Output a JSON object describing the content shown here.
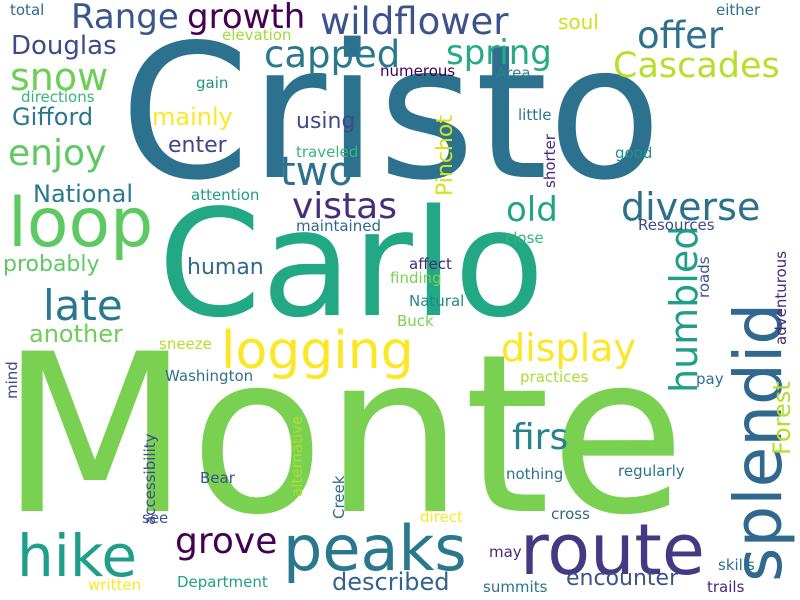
{
  "words": [
    {
      "text": "Monte",
      "color": "#7ad151"
    },
    {
      "text": "Cristo",
      "color": "#2c728e"
    },
    {
      "text": "Carlo",
      "color": "#22a884"
    },
    {
      "text": "route",
      "color": "#443983"
    },
    {
      "text": "peaks",
      "color": "#2a788e"
    },
    {
      "text": "hike",
      "color": "#1f9e89"
    },
    {
      "text": "splendid",
      "color": "#31688e"
    },
    {
      "text": "loop",
      "color": "#5ec962"
    },
    {
      "text": "logging",
      "color": "#fde725"
    },
    {
      "text": "wildflower",
      "color": "#3b528b"
    },
    {
      "text": "growth",
      "color": "#440154"
    },
    {
      "text": "Range",
      "color": "#39568c"
    },
    {
      "text": "capped",
      "color": "#2a788e"
    },
    {
      "text": "spring",
      "color": "#25ab82"
    },
    {
      "text": "offer",
      "color": "#2c728e"
    },
    {
      "text": "Cascades",
      "color": "#b8de29"
    },
    {
      "text": "Douglas",
      "color": "#3e4a89"
    },
    {
      "text": "snow",
      "color": "#6ece58"
    },
    {
      "text": "enjoy",
      "color": "#5ec962"
    },
    {
      "text": "two",
      "color": "#2c728e"
    },
    {
      "text": "vistas",
      "color": "#472d7b"
    },
    {
      "text": "diverse",
      "color": "#2d708e"
    },
    {
      "text": "old",
      "color": "#20a386"
    },
    {
      "text": "late",
      "color": "#2a788e"
    },
    {
      "text": "display",
      "color": "#fde725"
    },
    {
      "text": "humbled",
      "color": "#1f9e89"
    },
    {
      "text": "grove",
      "color": "#440154"
    },
    {
      "text": "firs",
      "color": "#26828e"
    },
    {
      "text": "encounter",
      "color": "#3b528b"
    },
    {
      "text": "described",
      "color": "#33638d"
    },
    {
      "text": "Forest",
      "color": "#b5de2b"
    },
    {
      "text": "mainly",
      "color": "#fde725"
    },
    {
      "text": "Gifford",
      "color": "#2a788e"
    },
    {
      "text": "National",
      "color": "#2a788e"
    },
    {
      "text": "Pinchot",
      "color": "#d8e219"
    },
    {
      "text": "using",
      "color": "#3e4a89"
    },
    {
      "text": "enter",
      "color": "#414487"
    },
    {
      "text": "human",
      "color": "#31688e"
    },
    {
      "text": "probably",
      "color": "#5ec962"
    },
    {
      "text": "another",
      "color": "#6ece58"
    },
    {
      "text": "soul",
      "color": "#d0e11c"
    },
    {
      "text": "either",
      "color": "#2c728e"
    },
    {
      "text": "total",
      "color": "#31688e"
    },
    {
      "text": "elevation",
      "color": "#a0da39"
    },
    {
      "text": "gain",
      "color": "#21918c"
    },
    {
      "text": "directions",
      "color": "#35b779"
    },
    {
      "text": "numerous",
      "color": "#440154"
    },
    {
      "text": "Area",
      "color": "#26828e"
    },
    {
      "text": "little",
      "color": "#2c728e"
    },
    {
      "text": "traveled",
      "color": "#35b779"
    },
    {
      "text": "good",
      "color": "#21918c"
    },
    {
      "text": "shorter",
      "color": "#482878"
    },
    {
      "text": "attention",
      "color": "#1f9e89"
    },
    {
      "text": "maintained",
      "color": "#31688e"
    },
    {
      "text": "Resources",
      "color": "#3e4a89"
    },
    {
      "text": "close",
      "color": "#35b779"
    },
    {
      "text": "roads",
      "color": "#3b528b"
    },
    {
      "text": "affect",
      "color": "#482878"
    },
    {
      "text": "finding",
      "color": "#7ad151"
    },
    {
      "text": "Natural",
      "color": "#23888e"
    },
    {
      "text": "Buck",
      "color": "#7ad151"
    },
    {
      "text": "adventurous",
      "color": "#482878"
    },
    {
      "text": "sneeze",
      "color": "#b5de2b"
    },
    {
      "text": "Washington",
      "color": "#2c728e"
    },
    {
      "text": "practices",
      "color": "#aadc32"
    },
    {
      "text": "pay",
      "color": "#2c728e"
    },
    {
      "text": "mind",
      "color": "#3e4a89"
    },
    {
      "text": "accessibility",
      "color": "#3e4a89"
    },
    {
      "text": "alternative",
      "color": "#aadc32"
    },
    {
      "text": "Creek",
      "color": "#31688e"
    },
    {
      "text": "nothing",
      "color": "#2c728e"
    },
    {
      "text": "regularly",
      "color": "#2c728e"
    },
    {
      "text": "Bear",
      "color": "#3b528b"
    },
    {
      "text": "see",
      "color": "#38588c"
    },
    {
      "text": "direct",
      "color": "#fde725"
    },
    {
      "text": "cross",
      "color": "#33638d"
    },
    {
      "text": "may",
      "color": "#482878"
    },
    {
      "text": "skills",
      "color": "#2c728e"
    },
    {
      "text": "written",
      "color": "#fde725"
    },
    {
      "text": "Department",
      "color": "#1f9e89"
    },
    {
      "text": "summits",
      "color": "#2c728e"
    },
    {
      "text": "trails",
      "color": "#482878"
    }
  ]
}
